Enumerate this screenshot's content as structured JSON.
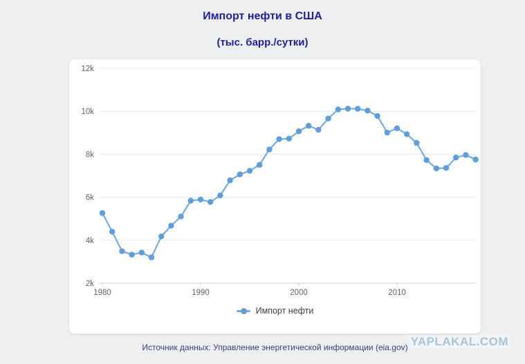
{
  "page": {
    "title": "Импорт нефти в США",
    "subtitle": "(тыс. барр./сутки)",
    "source_note": "Источник данных: Управление энергетической информации (eia.gov)",
    "watermark": "YAPLAKAL.COM"
  },
  "colors": {
    "page_background": "#edeff1",
    "card_background": "#ffffff",
    "title_navy": "#1e1e99",
    "line": "#74abe2",
    "marker": "#5f9ed9",
    "gridline": "#e8eaed",
    "axis": "#ccd0d4",
    "axis_label": "#5f6368",
    "legend_text": "#3c4043",
    "source_text": "#3c3c78",
    "watermark_blue": "#a7c4d8"
  },
  "chart_data": {
    "type": "line",
    "title": "Импорт нефти в США",
    "subtitle": "(тыс. барр./сутки)",
    "xlabel": "",
    "ylabel": "",
    "grid": true,
    "legend_position": "bottom",
    "legend": [
      "Импорт нефти"
    ],
    "x": [
      1980,
      1981,
      1982,
      1983,
      1984,
      1985,
      1986,
      1987,
      1988,
      1989,
      1990,
      1991,
      1992,
      1993,
      1994,
      1995,
      1996,
      1997,
      1998,
      1999,
      2000,
      2001,
      2002,
      2003,
      2004,
      2005,
      2006,
      2007,
      2008,
      2009,
      2010,
      2011,
      2012,
      2013,
      2014,
      2015,
      2016,
      2017,
      2018
    ],
    "series": [
      {
        "name": "Импорт нефти",
        "values": [
          5263,
          4396,
          3488,
          3329,
          3426,
          3201,
          4178,
          4674,
          5107,
          5843,
          5894,
          5782,
          6083,
          6787,
          7063,
          7230,
          7508,
          8225,
          8706,
          8731,
          9071,
          9328,
          9140,
          9665,
          10088,
          10126,
          10118,
          10031,
          9783,
          9013,
          9213,
          8935,
          8527,
          7730,
          7344,
          7363,
          7850,
          7969,
          7757
        ]
      }
    ],
    "ylim": [
      2000,
      12000
    ],
    "yticks": [
      {
        "value": 2000,
        "label": "2k"
      },
      {
        "value": 4000,
        "label": "4k"
      },
      {
        "value": 6000,
        "label": "6k"
      },
      {
        "value": 8000,
        "label": "8k"
      },
      {
        "value": 10000,
        "label": "10k"
      },
      {
        "value": 12000,
        "label": "12k"
      }
    ],
    "xticks": [
      1980,
      1990,
      2000,
      2010
    ]
  }
}
